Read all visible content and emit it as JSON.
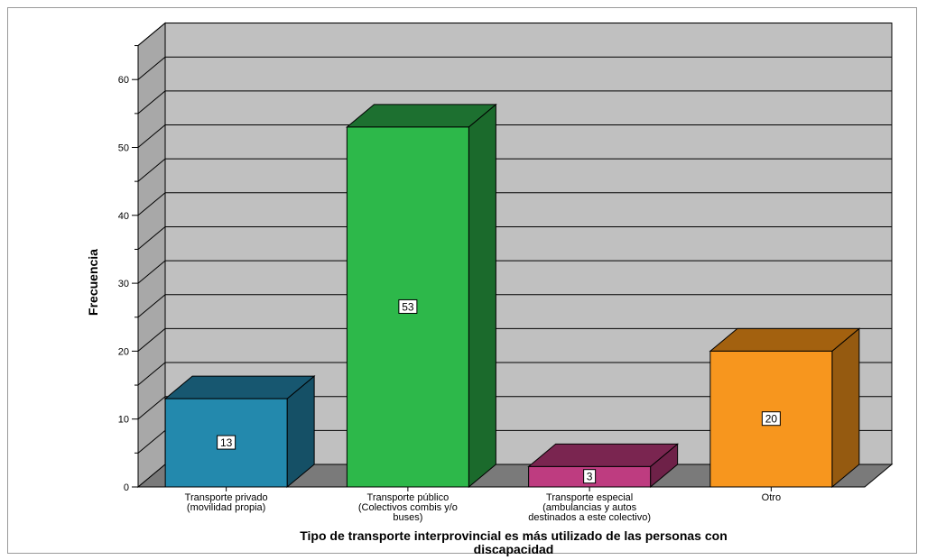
{
  "chart_data": {
    "type": "bar",
    "title": "",
    "xlabel": "Tipo de transporte interprovincial es más utilizado de las personas con discapacidad",
    "ylabel": "Frecuencia",
    "ylim": [
      0,
      65
    ],
    "yticks": [
      0,
      10,
      20,
      30,
      40,
      50,
      60
    ],
    "grid": true,
    "legend": "none",
    "categories": [
      [
        "Transporte privado",
        "(movilidad propia)"
      ],
      [
        "Transporte público",
        "(Colectivos combis y/o",
        "buses)"
      ],
      [
        "Transporte especial",
        "(ambulancias y autos",
        "destinados a este colectivo)"
      ],
      [
        "Otro"
      ]
    ],
    "values": [
      13,
      53,
      3,
      20
    ],
    "data_labels": [
      "13",
      "53",
      "3",
      "20"
    ],
    "colors": {
      "front": [
        "#2389ad",
        "#2db84a",
        "#be3c80",
        "#f7961e"
      ],
      "top": [
        "#175770",
        "#1d7030",
        "#7a2550",
        "#a3610f"
      ],
      "side": [
        "#155066",
        "#1b6a2c",
        "#6e2148",
        "#955a10"
      ],
      "plot_back": "#c0c0c0",
      "plot_side": "#a8a8a8",
      "floor": "#7a7a7a"
    }
  }
}
